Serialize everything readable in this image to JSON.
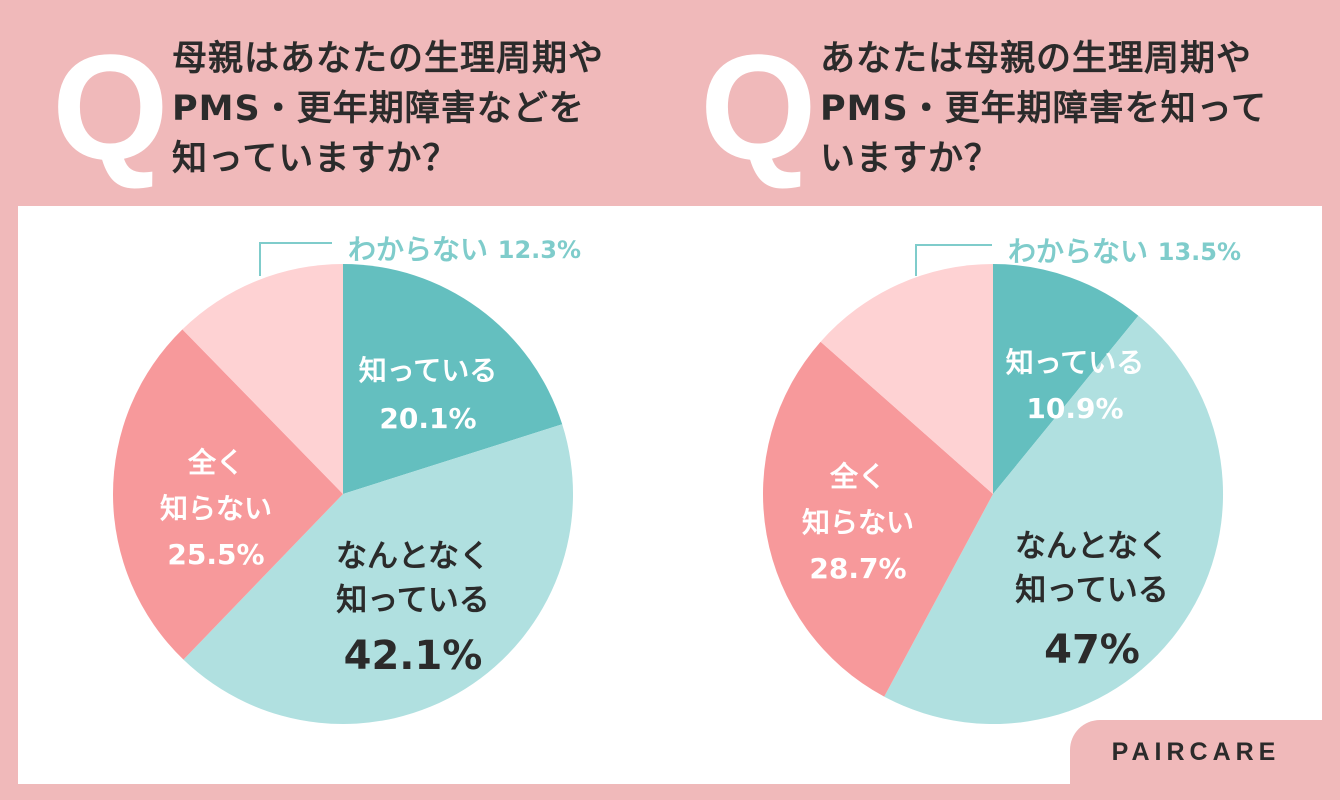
{
  "questions": [
    {
      "mark": "Q",
      "lines": [
        "母親はあなたの生理周期や",
        "PMS・更年期障害などを",
        "知っていますか？"
      ]
    },
    {
      "mark": "Q",
      "lines": [
        "あなたは母親の生理周期や",
        "PMS・更年期障害を知って",
        "いますか？"
      ]
    }
  ],
  "brand": "PAIRCARE",
  "chart_data": [
    {
      "type": "pie",
      "slices": [
        {
          "label": "知っている",
          "value": 20.1,
          "value_text": "20.1%",
          "color": "#64bfbf"
        },
        {
          "label": "なんとなく知っている",
          "value": 42.1,
          "value_text": "42.1%",
          "color": "#b0e0e0"
        },
        {
          "label": "全く知らない",
          "value": 25.5,
          "value_text": "25.5%",
          "color": "#f7999b"
        },
        {
          "label": "わからない",
          "value": 12.3,
          "value_text": "12.3%",
          "color": "#fed2d3"
        }
      ]
    },
    {
      "type": "pie",
      "slices": [
        {
          "label": "知っている",
          "value": 10.9,
          "value_text": "10.9%",
          "color": "#64bfbf"
        },
        {
          "label": "なんとなく知っている",
          "value": 47,
          "value_text": "47%",
          "color": "#b0e0e0"
        },
        {
          "label": "全く知らない",
          "value": 28.7,
          "value_text": "28.7%",
          "color": "#f7999b"
        },
        {
          "label": "わからない",
          "value": 13.5,
          "value_text": "13.5%",
          "color": "#fed2d3"
        }
      ]
    }
  ]
}
